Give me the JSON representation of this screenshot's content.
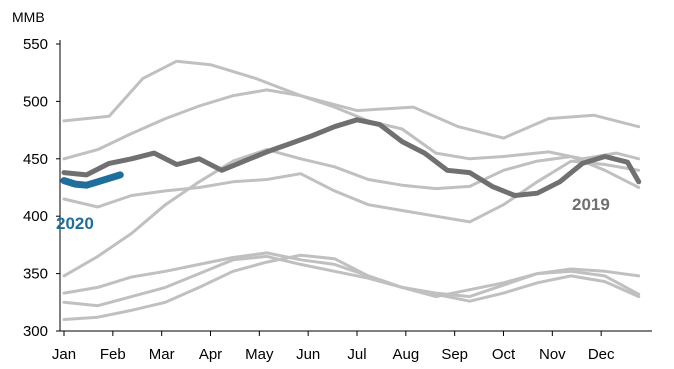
{
  "chart_data": {
    "type": "line",
    "unit_label": "MMB",
    "ylim": [
      300,
      560
    ],
    "y_ticks": [
      300,
      350,
      400,
      450,
      500,
      550
    ],
    "x_months": [
      "Jan",
      "Feb",
      "Mar",
      "Apr",
      "May",
      "Jun",
      "Jul",
      "Aug",
      "Sep",
      "Oct",
      "Nov",
      "Dec"
    ],
    "grid": false,
    "colors": {
      "history": "#c0c0c0",
      "year_2019": "#707070",
      "year_2020": "#1f6e9c",
      "axis": "#000000"
    },
    "series": [
      {
        "name": "",
        "style": "history",
        "weeks": [
          0,
          4,
          7,
          10,
          13,
          17,
          21,
          26,
          31,
          35,
          39,
          43,
          47,
          51
        ],
        "values": [
          483,
          487,
          520,
          535,
          532,
          520,
          505,
          492,
          495,
          478,
          468,
          485,
          488,
          478
        ]
      },
      {
        "name": "",
        "style": "history",
        "weeks": [
          0,
          3,
          6,
          9,
          12,
          15,
          18,
          21,
          24,
          27,
          30,
          33,
          36,
          39,
          43,
          46,
          49,
          51
        ],
        "values": [
          450,
          458,
          472,
          485,
          496,
          505,
          510,
          505,
          495,
          483,
          476,
          455,
          450,
          452,
          456,
          450,
          455,
          450
        ]
      },
      {
        "name": "",
        "style": "history",
        "weeks": [
          0,
          3,
          6,
          9,
          12,
          15,
          18,
          21,
          24,
          27,
          30,
          33,
          36,
          39,
          42,
          45,
          48,
          51
        ],
        "values": [
          348,
          365,
          385,
          410,
          430,
          448,
          458,
          450,
          443,
          432,
          427,
          424,
          426,
          440,
          448,
          452,
          440,
          425
        ]
      },
      {
        "name": "",
        "style": "history",
        "weeks": [
          0,
          3,
          6,
          9,
          12,
          15,
          18,
          21,
          24,
          27,
          30,
          33,
          36,
          39,
          42,
          45,
          48,
          51
        ],
        "values": [
          415,
          408,
          418,
          422,
          425,
          430,
          432,
          437,
          422,
          410,
          405,
          400,
          395,
          410,
          430,
          448,
          445,
          440
        ]
      },
      {
        "name": "",
        "style": "history",
        "weeks": [
          0,
          3,
          6,
          9,
          12,
          15,
          18,
          21,
          24,
          27,
          30,
          33,
          36,
          39,
          42,
          45,
          48,
          51
        ],
        "values": [
          333,
          338,
          347,
          352,
          358,
          364,
          368,
          362,
          358,
          348,
          338,
          333,
          330,
          340,
          350,
          352,
          348,
          332
        ]
      },
      {
        "name": "",
        "style": "history",
        "weeks": [
          0,
          3,
          6,
          9,
          12,
          15,
          18,
          21,
          24,
          27,
          30,
          33,
          36,
          39,
          42,
          45,
          48,
          51
        ],
        "values": [
          325,
          322,
          330,
          338,
          350,
          362,
          365,
          358,
          352,
          346,
          338,
          332,
          326,
          333,
          342,
          348,
          343,
          330
        ]
      },
      {
        "name": "",
        "style": "history",
        "weeks": [
          0,
          3,
          6,
          9,
          12,
          15,
          18,
          21,
          24,
          27,
          30,
          33,
          36,
          39,
          42,
          45,
          48,
          51
        ],
        "values": [
          310,
          312,
          318,
          325,
          338,
          352,
          360,
          366,
          363,
          348,
          338,
          330,
          336,
          342,
          350,
          354,
          352,
          348
        ]
      },
      {
        "name": "2019",
        "style": "year_2019",
        "weeks": [
          0,
          2,
          4,
          6,
          8,
          10,
          12,
          14,
          16,
          18,
          20,
          22,
          24,
          26,
          28,
          30,
          32,
          34,
          36,
          38,
          40,
          42,
          44,
          46,
          48,
          50,
          51
        ],
        "values": [
          438,
          436,
          446,
          450,
          455,
          445,
          450,
          440,
          448,
          456,
          463,
          470,
          478,
          484,
          480,
          465,
          455,
          440,
          438,
          426,
          418,
          420,
          430,
          446,
          452,
          447,
          430
        ]
      },
      {
        "name": "2020",
        "style": "year_2020",
        "weeks": [
          0,
          1,
          2,
          3,
          4,
          5
        ],
        "values": [
          431,
          428,
          427,
          430,
          433,
          436
        ]
      }
    ],
    "series_labels": [
      {
        "text": "2020",
        "series": "2020"
      },
      {
        "text": "2019",
        "series": "2019"
      }
    ]
  }
}
